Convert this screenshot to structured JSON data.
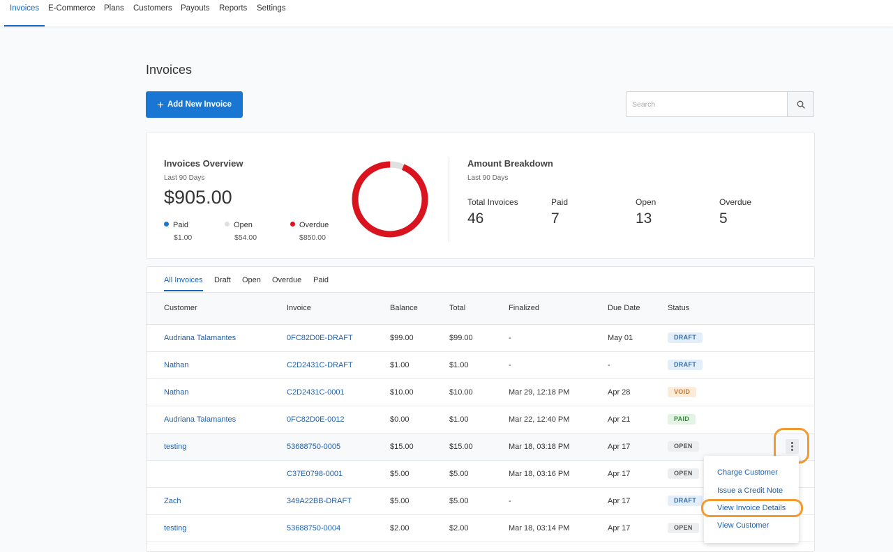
{
  "nav": {
    "tabs": [
      {
        "label": "Invoices",
        "active": true
      },
      {
        "label": "E-Commerce"
      },
      {
        "label": "Plans"
      },
      {
        "label": "Customers"
      },
      {
        "label": "Payouts"
      },
      {
        "label": "Reports"
      },
      {
        "label": "Settings"
      }
    ]
  },
  "page": {
    "title": "Invoices",
    "add_button_label": "Add New Invoice",
    "search_placeholder": "Search",
    "search_icon": "search-icon"
  },
  "overview": {
    "title": "Invoices Overview",
    "period": "Last 90 Days",
    "total_amount": "$905.00",
    "legend": [
      {
        "label": "Paid",
        "value": "$1.00",
        "color": "#1976d2"
      },
      {
        "label": "Open",
        "value": "$54.00",
        "color": "#e0e0e0"
      },
      {
        "label": "Overdue",
        "value": "$850.00",
        "color": "#d9141f"
      }
    ],
    "donut_fractions": {
      "paid": 0.0011,
      "open": 0.0597,
      "overdue": 0.9392
    }
  },
  "breakdown": {
    "title": "Amount Breakdown",
    "period": "Last 90 Days",
    "stats": [
      {
        "label": "Total Invoices",
        "value": "46"
      },
      {
        "label": "Paid",
        "value": "7"
      },
      {
        "label": "Open",
        "value": "13"
      },
      {
        "label": "Overdue",
        "value": "5"
      }
    ]
  },
  "filters": [
    "All Invoices",
    "Draft",
    "Open",
    "Overdue",
    "Paid"
  ],
  "table": {
    "columns": [
      "Customer",
      "Invoice",
      "Balance",
      "Total",
      "Finalized",
      "Due Date",
      "Status"
    ],
    "rows": [
      {
        "customer": "Audriana Talamantes",
        "invoice": "0FC82D0E-DRAFT",
        "balance": "$99.00",
        "total": "$99.00",
        "finalized": "-",
        "due": "May 01",
        "status": "DRAFT"
      },
      {
        "customer": "Nathan",
        "invoice": "C2D2431C-DRAFT",
        "balance": "$1.00",
        "total": "$1.00",
        "finalized": "-",
        "due": "-",
        "status": "DRAFT"
      },
      {
        "customer": "Nathan",
        "invoice": "C2D2431C-0001",
        "balance": "$10.00",
        "total": "$10.00",
        "finalized": "Mar 29, 12:18 PM",
        "due": "Apr 28",
        "status": "VOID"
      },
      {
        "customer": "Audriana Talamantes",
        "invoice": "0FC82D0E-0012",
        "balance": "$0.00",
        "total": "$1.00",
        "finalized": "Mar 22, 12:40 PM",
        "due": "Apr 21",
        "status": "PAID"
      },
      {
        "customer": "testing",
        "invoice": "53688750-0005",
        "balance": "$15.00",
        "total": "$15.00",
        "finalized": "Mar 18, 03:18 PM",
        "due": "Apr 17",
        "status": "OPEN"
      },
      {
        "customer": "",
        "invoice": "C37E0798-0001",
        "balance": "$5.00",
        "total": "$5.00",
        "finalized": "Mar 18, 03:16 PM",
        "due": "Apr 17",
        "status": "OPEN"
      },
      {
        "customer": "Zach",
        "invoice": "349A22BB-DRAFT",
        "balance": "$5.00",
        "total": "$5.00",
        "finalized": "-",
        "due": "Apr 17",
        "status": "DRAFT"
      },
      {
        "customer": "testing",
        "invoice": "53688750-0004",
        "balance": "$2.00",
        "total": "$2.00",
        "finalized": "Mar 18, 03:14 PM",
        "due": "Apr 17",
        "status": "OPEN"
      }
    ]
  },
  "row_menu": {
    "items": [
      "Charge Customer",
      "Issue a Credit Note",
      "View Invoice Details",
      "View Customer"
    ]
  },
  "colors": {
    "accent": "#1976d2",
    "highlight_ring": "#f39a2e",
    "overdue": "#d9141f"
  }
}
